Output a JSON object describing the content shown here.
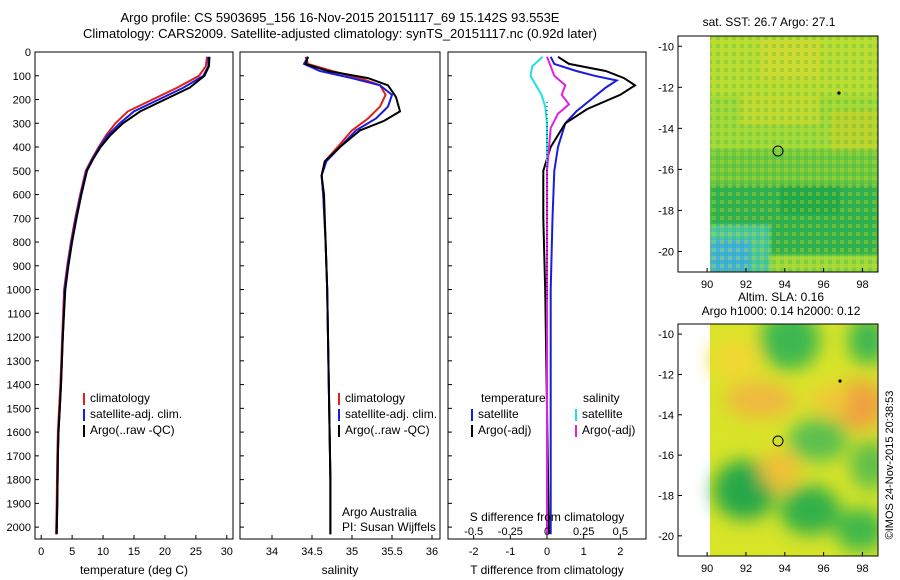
{
  "title": {
    "line1": "Argo profile: CS 5903695_156 16-Nov-2015 20151117_69 15.142S 93.553E",
    "line2": "Climatology: CARS2009. Satellite-adjusted climatology: synTS_20151117.nc (0.92d later)"
  },
  "timestamp": "©IMOS 24-Nov-2015 20:38:53",
  "colors": {
    "climatology": "#e0201a",
    "satellite": "#1a1ae0",
    "argo": "#000000",
    "salinity_satellite": "#22e0e0",
    "salinity_argo": "#e020e0"
  },
  "chart_data": [
    {
      "type": "line",
      "panel": "temperature",
      "xlabel": "temperature (deg C)",
      "ylabel": "",
      "xlim": [
        -1,
        31
      ],
      "ylim": [
        2050,
        0
      ],
      "xticks": [
        "0",
        "5",
        "10",
        "15",
        "20",
        "25",
        "30"
      ],
      "yticks": [
        "0",
        "100",
        "200",
        "300",
        "400",
        "500",
        "600",
        "700",
        "800",
        "900",
        "1000",
        "1100",
        "1200",
        "1300",
        "1400",
        "1500",
        "1600",
        "1700",
        "1800",
        "1900",
        "2000"
      ],
      "legend": [
        "climatology",
        "satellite-adj. clim.",
        "Argo(..raw -QC)"
      ],
      "series": [
        {
          "name": "climatology",
          "color": "#e0201a",
          "x": [
            26.8,
            26.6,
            25.5,
            22,
            18,
            14,
            12,
            10.5,
            9.3,
            8.2,
            7.2,
            6.3,
            5.5,
            4.8,
            4.2,
            3.7,
            3.4,
            3.1,
            2.9,
            2.7,
            2.6,
            2.5,
            2.4
          ],
          "y": [
            20,
            60,
            100,
            150,
            200,
            250,
            300,
            350,
            400,
            450,
            500,
            600,
            700,
            800,
            900,
            1000,
            1200,
            1400,
            1500,
            1600,
            1700,
            1900,
            2030
          ]
        },
        {
          "name": "satellite-adj. clim.",
          "color": "#1a1ae0",
          "x": [
            27.0,
            27.0,
            26.2,
            23,
            19,
            15,
            12.7,
            10.8,
            9.4,
            8.3,
            7.3,
            6.4,
            5.6,
            4.9,
            4.3,
            3.8,
            3.5,
            3.2,
            3.0,
            2.8,
            2.7,
            2.6,
            2.5
          ],
          "y": [
            20,
            60,
            100,
            150,
            200,
            250,
            300,
            350,
            400,
            450,
            500,
            600,
            700,
            800,
            900,
            1000,
            1200,
            1400,
            1500,
            1600,
            1700,
            1900,
            2030
          ]
        },
        {
          "name": "Argo(..raw -QC)",
          "color": "#000000",
          "x": [
            27.2,
            27.1,
            26.4,
            24,
            20,
            16,
            13.2,
            11.2,
            9.6,
            8.4,
            7.4,
            6.5,
            5.7,
            5.0,
            4.4,
            3.9,
            3.5,
            3.2,
            3.0,
            2.8,
            2.7,
            2.6,
            2.5
          ],
          "y": [
            20,
            60,
            100,
            150,
            200,
            250,
            300,
            350,
            400,
            450,
            500,
            600,
            700,
            800,
            900,
            1000,
            1200,
            1400,
            1500,
            1600,
            1700,
            1900,
            2030
          ]
        }
      ]
    },
    {
      "type": "line",
      "panel": "salinity",
      "xlabel": "salinity",
      "ylabel": "",
      "xlim": [
        33.6,
        36.1
      ],
      "ylim": [
        2050,
        0
      ],
      "xticks": [
        "34",
        "34.5",
        "35",
        "35.5",
        "36"
      ],
      "legend": [
        "climatology",
        "satellite-adj. clim.",
        "Argo(..raw -QC)"
      ],
      "annotation": [
        "Argo Australia",
        "PI: Susan Wijffels"
      ],
      "series": [
        {
          "name": "climatology",
          "color": "#e0201a",
          "x": [
            34.42,
            34.45,
            34.75,
            35.1,
            35.35,
            35.42,
            35.35,
            35.2,
            35.0,
            34.82,
            34.66,
            34.62,
            34.64,
            34.67,
            34.69,
            34.7,
            34.71,
            34.72,
            34.73,
            34.73
          ],
          "y": [
            20,
            50,
            80,
            110,
            140,
            180,
            230,
            280,
            330,
            400,
            460,
            520,
            600,
            800,
            1000,
            1200,
            1400,
            1600,
            1800,
            2030
          ]
        },
        {
          "name": "satellite-adj. clim.",
          "color": "#1a1ae0",
          "x": [
            34.45,
            34.4,
            34.6,
            35.0,
            35.35,
            35.5,
            35.45,
            35.3,
            35.05,
            34.85,
            34.68,
            34.62,
            34.64,
            34.67,
            34.69,
            34.7,
            34.71,
            34.72,
            34.73,
            34.73
          ],
          "y": [
            20,
            50,
            80,
            110,
            140,
            180,
            230,
            280,
            330,
            400,
            460,
            520,
            600,
            800,
            1000,
            1200,
            1400,
            1600,
            1800,
            2030
          ]
        },
        {
          "name": "Argo(..raw -QC)",
          "color": "#000000",
          "x": [
            34.45,
            34.42,
            34.7,
            35.2,
            35.45,
            35.55,
            35.6,
            35.4,
            35.1,
            34.85,
            34.66,
            34.62,
            34.65,
            34.67,
            34.69,
            34.7,
            34.71,
            34.72,
            34.73,
            34.73
          ],
          "y": [
            20,
            50,
            80,
            110,
            140,
            190,
            250,
            290,
            330,
            400,
            460,
            520,
            600,
            800,
            1000,
            1200,
            1400,
            1600,
            1800,
            2030
          ]
        }
      ]
    },
    {
      "type": "line",
      "panel": "differences",
      "xlabel": "T difference from climatology",
      "xlabel_top": "S difference from climatology",
      "xlim": [
        -2.7,
        2.7
      ],
      "ylim": [
        2050,
        0
      ],
      "xticks": [
        "-2",
        "-1",
        "0",
        "1",
        "2"
      ],
      "sticks": [
        "-0.5",
        "-0.25",
        "0",
        "0.25",
        "0.5"
      ],
      "legend_headers": [
        "temperature",
        "salinity"
      ],
      "legend": [
        "satellite",
        "Argo(-adj)",
        "satellite",
        "Argo(-adj)"
      ],
      "series": [
        {
          "name": "temperature satellite",
          "color": "#1a1ae0",
          "x": [
            0.1,
            0.2,
            0.8,
            1.3,
            1.9,
            1.6,
            1.2,
            0.8,
            0.5,
            0.3,
            0.2,
            0.15,
            0.1,
            0.1,
            0.1
          ],
          "y": [
            20,
            50,
            80,
            100,
            120,
            150,
            200,
            250,
            300,
            400,
            500,
            700,
            1000,
            1500,
            2030
          ]
        },
        {
          "name": "temperature Argo(-adj)",
          "color": "#000000",
          "x": [
            0.3,
            0.6,
            1.6,
            2.1,
            2.4,
            2.0,
            1.1,
            0.5,
            0.3,
            0.1,
            -0.1,
            -0.1,
            -0.05,
            0.0,
            0.05
          ],
          "y": [
            20,
            50,
            80,
            110,
            140,
            180,
            240,
            300,
            350,
            400,
            500,
            700,
            1000,
            1500,
            2030
          ]
        },
        {
          "name": "salinity satellite",
          "color": "#22e0e0",
          "x": [
            -0.12,
            -0.4,
            -0.45,
            -0.3,
            -0.15,
            -0.05,
            0.0,
            0.0,
            0.0,
            0.0
          ],
          "y": [
            20,
            60,
            100,
            140,
            180,
            230,
            300,
            500,
            1000,
            2030
          ]
        },
        {
          "name": "salinity Argo(-adj)",
          "color": "#e020e0",
          "x": [
            0.0,
            0.1,
            0.2,
            0.5,
            0.4,
            0.6,
            0.3,
            0.1,
            0.0,
            0.0,
            0.0
          ],
          "y": [
            20,
            60,
            100,
            140,
            180,
            220,
            260,
            320,
            500,
            1000,
            2030
          ]
        }
      ]
    },
    {
      "type": "heatmap",
      "panel": "sst-map",
      "title": "sat. SST: 26.7 Argo: 27.1",
      "xlim": [
        88.5,
        98.8
      ],
      "ylim": [
        -21,
        -9.5
      ],
      "xticks": [
        "90",
        "92",
        "94",
        "96",
        "98"
      ],
      "yticks": [
        "-10",
        "-12",
        "-14",
        "-16",
        "-18",
        "-20"
      ]
    },
    {
      "type": "heatmap",
      "panel": "sla-map",
      "title": "Altim. SLA: 0.16",
      "subtitle": "Argo h1000: 0.14 h2000: 0.12",
      "xlim": [
        88.5,
        98.8
      ],
      "ylim": [
        -21,
        -9.5
      ],
      "xticks": [
        "90",
        "92",
        "94",
        "96",
        "98"
      ],
      "yticks": [
        "-10",
        "-12",
        "-14",
        "-16",
        "-18",
        "-20"
      ]
    }
  ]
}
